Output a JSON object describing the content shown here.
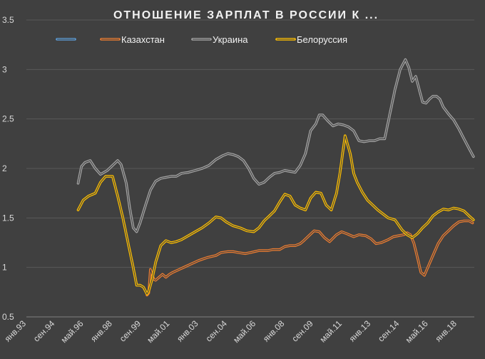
{
  "chart_data": {
    "type": "line",
    "title": "ОТНОШЕНИЕ ЗАРПЛАТ В РОССИИ К ...",
    "ylim": [
      0.5,
      3.5
    ],
    "y_ticks": [
      "0.5",
      "1",
      "1.5",
      "2",
      "2.5",
      "3",
      "3.5"
    ],
    "x_range": [
      1993.0,
      2019.0
    ],
    "x_ticks": [
      {
        "label": "янв.93",
        "x": 1993.0
      },
      {
        "label": "сен.94",
        "x": 1994.667
      },
      {
        "label": "май.96",
        "x": 1996.333
      },
      {
        "label": "янв.98",
        "x": 1998.0
      },
      {
        "label": "сен.99",
        "x": 1999.667
      },
      {
        "label": "май.01",
        "x": 2001.333
      },
      {
        "label": "янв.03",
        "x": 2003.0
      },
      {
        "label": "сен.04",
        "x": 2004.667
      },
      {
        "label": "май.06",
        "x": 2006.333
      },
      {
        "label": "янв.08",
        "x": 2008.0
      },
      {
        "label": "сен.09",
        "x": 2009.667
      },
      {
        "label": "май.11",
        "x": 2011.333
      },
      {
        "label": "янв.13",
        "x": 2013.0
      },
      {
        "label": "сен.14",
        "x": 2014.667
      },
      {
        "label": "май.16",
        "x": 2016.333
      },
      {
        "label": "янв.18",
        "x": 2018.0
      }
    ],
    "grid": "horizontal",
    "legend_position": "top",
    "series": [
      {
        "name": "",
        "color": "#5b9bd5",
        "x": [],
        "y": []
      },
      {
        "name": "Казахстан",
        "color": "#ed7d31",
        "x": [
          2000.0,
          2000.1,
          2000.2,
          2000.3,
          2000.4,
          2000.5,
          2000.7,
          2000.9,
          2001.1,
          2001.3,
          2001.5,
          2002.0,
          2002.5,
          2003.0,
          2003.5,
          2004.0,
          2004.3,
          2004.7,
          2005.0,
          2005.3,
          2005.7,
          2006.0,
          2006.5,
          2007.0,
          2007.3,
          2007.7,
          2008.0,
          2008.3,
          2008.6,
          2008.9,
          2009.1,
          2009.4,
          2009.7,
          2010.0,
          2010.3,
          2010.6,
          2011.0,
          2011.3,
          2011.6,
          2012.0,
          2012.3,
          2012.7,
          2013.0,
          2013.3,
          2013.6,
          2014.0,
          2014.3,
          2014.6,
          2014.9,
          2015.1,
          2015.3,
          2015.5,
          2015.7,
          2015.9,
          2016.1,
          2016.3,
          2016.6,
          2016.9,
          2017.2,
          2017.5,
          2017.8,
          2018.1,
          2018.4,
          2018.7,
          2018.9
        ],
        "y": [
          0.72,
          0.74,
          0.98,
          0.93,
          0.88,
          0.87,
          0.9,
          0.93,
          0.9,
          0.93,
          0.95,
          0.99,
          1.03,
          1.07,
          1.1,
          1.12,
          1.15,
          1.16,
          1.16,
          1.15,
          1.14,
          1.15,
          1.17,
          1.17,
          1.18,
          1.18,
          1.21,
          1.22,
          1.22,
          1.24,
          1.27,
          1.32,
          1.37,
          1.36,
          1.3,
          1.26,
          1.33,
          1.36,
          1.34,
          1.31,
          1.33,
          1.32,
          1.29,
          1.24,
          1.25,
          1.28,
          1.31,
          1.32,
          1.33,
          1.35,
          1.33,
          1.24,
          1.1,
          0.95,
          0.92,
          1.0,
          1.12,
          1.24,
          1.32,
          1.37,
          1.42,
          1.46,
          1.47,
          1.47,
          1.45
        ]
      },
      {
        "name": "Украина",
        "color": "#a5a5a5",
        "x": [
          1996.0,
          1996.2,
          1996.4,
          1996.7,
          1997.0,
          1997.3,
          1997.7,
          1998.0,
          1998.3,
          1998.5,
          1998.8,
          1999.0,
          1999.2,
          1999.4,
          1999.6,
          1999.9,
          2000.2,
          2000.5,
          2000.8,
          2001.1,
          2001.4,
          2001.7,
          2002.0,
          2002.4,
          2002.8,
          2003.2,
          2003.6,
          2004.0,
          2004.4,
          2004.7,
          2005.0,
          2005.3,
          2005.6,
          2005.9,
          2006.2,
          2006.5,
          2006.8,
          2007.1,
          2007.4,
          2007.7,
          2008.0,
          2008.3,
          2008.6,
          2008.9,
          2009.2,
          2009.5,
          2009.8,
          2010.0,
          2010.2,
          2010.5,
          2010.8,
          2011.1,
          2011.4,
          2011.7,
          2012.0,
          2012.3,
          2012.6,
          2012.9,
          2013.2,
          2013.5,
          2013.8,
          2014.1,
          2014.4,
          2014.7,
          2015.0,
          2015.2,
          2015.4,
          2015.6,
          2015.8,
          2016.0,
          2016.2,
          2016.4,
          2016.6,
          2016.8,
          2017.0,
          2017.2,
          2017.5,
          2017.8,
          2018.1,
          2018.4,
          2018.7,
          2018.95
        ],
        "y": [
          1.85,
          2.02,
          2.06,
          2.08,
          2.0,
          1.94,
          1.98,
          2.03,
          2.08,
          2.04,
          1.85,
          1.6,
          1.4,
          1.36,
          1.45,
          1.62,
          1.78,
          1.87,
          1.9,
          1.91,
          1.92,
          1.92,
          1.95,
          1.96,
          1.98,
          2.0,
          2.03,
          2.09,
          2.13,
          2.15,
          2.14,
          2.12,
          2.08,
          2.0,
          1.9,
          1.84,
          1.86,
          1.91,
          1.95,
          1.96,
          1.98,
          1.97,
          1.96,
          2.03,
          2.15,
          2.38,
          2.45,
          2.54,
          2.54,
          2.48,
          2.43,
          2.45,
          2.44,
          2.42,
          2.38,
          2.28,
          2.27,
          2.28,
          2.28,
          2.3,
          2.3,
          2.55,
          2.8,
          3.0,
          3.1,
          3.02,
          2.88,
          2.93,
          2.8,
          2.67,
          2.66,
          2.7,
          2.73,
          2.73,
          2.7,
          2.62,
          2.55,
          2.49,
          2.4,
          2.3,
          2.2,
          2.12
        ]
      },
      {
        "name": "Белоруссия",
        "color": "#ffc000",
        "x": [
          1996.0,
          1996.3,
          1996.6,
          1997.0,
          1997.3,
          1997.6,
          1998.0,
          1998.3,
          1998.6,
          1998.9,
          1999.2,
          1999.4,
          1999.6,
          1999.8,
          2000.0,
          2000.1,
          2000.3,
          2000.5,
          2000.8,
          2001.1,
          2001.4,
          2001.7,
          2002.0,
          2002.4,
          2002.8,
          2003.2,
          2003.6,
          2004.0,
          2004.3,
          2004.6,
          2005.0,
          2005.4,
          2005.8,
          2006.2,
          2006.5,
          2006.8,
          2007.1,
          2007.4,
          2007.7,
          2008.0,
          2008.3,
          2008.6,
          2008.9,
          2009.2,
          2009.5,
          2009.8,
          2010.1,
          2010.4,
          2010.7,
          2011.0,
          2011.2,
          2011.5,
          2011.8,
          2012.0,
          2012.2,
          2012.5,
          2012.8,
          2013.1,
          2013.4,
          2013.7,
          2014.0,
          2014.4,
          2014.8,
          2015.1,
          2015.4,
          2015.7,
          2016.0,
          2016.3,
          2016.6,
          2016.9,
          2017.2,
          2017.5,
          2017.8,
          2018.1,
          2018.4,
          2018.7,
          2018.95
        ],
        "y": [
          1.58,
          1.68,
          1.72,
          1.75,
          1.86,
          1.92,
          1.92,
          1.72,
          1.5,
          1.25,
          1.0,
          0.82,
          0.82,
          0.8,
          0.73,
          0.76,
          0.88,
          1.05,
          1.22,
          1.27,
          1.25,
          1.26,
          1.28,
          1.32,
          1.36,
          1.4,
          1.45,
          1.51,
          1.5,
          1.46,
          1.42,
          1.4,
          1.37,
          1.36,
          1.4,
          1.47,
          1.52,
          1.57,
          1.66,
          1.74,
          1.72,
          1.63,
          1.6,
          1.58,
          1.7,
          1.76,
          1.75,
          1.63,
          1.58,
          1.75,
          1.95,
          2.33,
          2.15,
          1.95,
          1.86,
          1.76,
          1.68,
          1.63,
          1.58,
          1.54,
          1.5,
          1.48,
          1.38,
          1.33,
          1.3,
          1.34,
          1.4,
          1.45,
          1.52,
          1.56,
          1.59,
          1.58,
          1.6,
          1.59,
          1.57,
          1.52,
          1.48
        ]
      }
    ]
  }
}
